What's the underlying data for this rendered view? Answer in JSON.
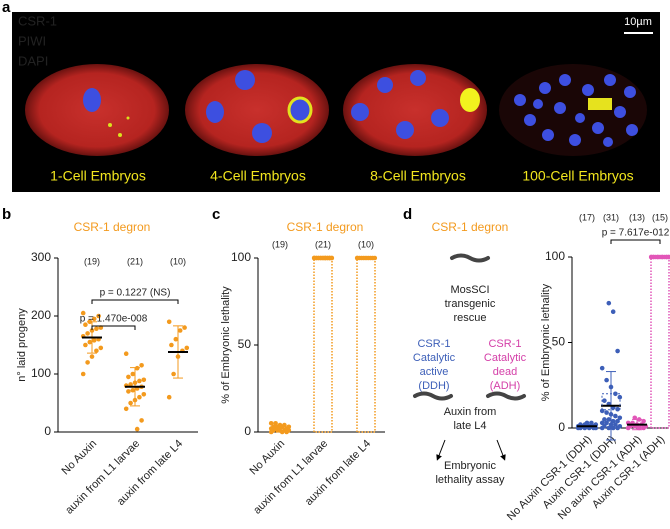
{
  "panel_letters": [
    "a",
    "b",
    "c",
    "d"
  ],
  "panel_a": {
    "channels": [
      {
        "name": "CSR-1",
        "color": "#e8262a"
      },
      {
        "name": "PIWI",
        "color": "#2fd12f"
      },
      {
        "name": "DAPI",
        "color": "#3d4fe0"
      }
    ],
    "scale_bar": "10µm",
    "captions": [
      "1-Cell Embryos",
      "4-Cell Embryos",
      "8-Cell Embryos",
      "100-Cell Embryos"
    ]
  },
  "diagram": {
    "title": "CSR-1 degron",
    "rescue": [
      "MosSCI",
      "transgenic",
      "rescue"
    ],
    "active": [
      "CSR-1",
      "Catalytic",
      "active",
      "(DDH)"
    ],
    "dead": [
      "CSR-1",
      "Catalytic",
      "dead",
      "(ADH)"
    ],
    "treatment": [
      "Auxin from",
      "late L4"
    ],
    "assay": [
      "Embryonic",
      "lethality assay"
    ]
  },
  "chart_data": [
    {
      "type": "strip",
      "title": "CSR-1 degron",
      "y_label": "n° laid progeny",
      "categories": [
        "No Auxin",
        "auxin from L1 larvae",
        "auxin from late L4"
      ],
      "n_labels": [
        "(19)",
        "(21)",
        "(10)"
      ],
      "colors": [
        "#f39a1e",
        "#f39a1e",
        "#f39a1e"
      ],
      "means": [
        163,
        78,
        138
      ],
      "sd": [
        27,
        33,
        45
      ],
      "points": [
        [
          205,
          200,
          195,
          190,
          185,
          180,
          178,
          175,
          170,
          165,
          160,
          158,
          155,
          150,
          145,
          140,
          130,
          120,
          100
        ],
        [
          135,
          115,
          110,
          100,
          95,
          90,
          88,
          85,
          82,
          80,
          78,
          75,
          72,
          70,
          65,
          60,
          55,
          50,
          40,
          20,
          5
        ],
        [
          190,
          180,
          175,
          160,
          150,
          145,
          140,
          130,
          100,
          60
        ]
      ],
      "bars": [
        false,
        false,
        false
      ],
      "annotations": [
        {
          "text": "p = 0.1227 (NS)",
          "between": [
            "No Auxin",
            "auxin from late L4"
          ]
        },
        {
          "text": "p = 1.470e-008",
          "between": [
            "No Auxin",
            "auxin from L1 larvae"
          ]
        }
      ],
      "ylim": [
        0,
        300
      ],
      "yticks": [
        0,
        100,
        200,
        300
      ]
    },
    {
      "type": "bar",
      "title": "CSR-1 degron",
      "y_label": "% of Embryonic lethality",
      "categories": [
        "No Auxin",
        "auxin from L1 larvae",
        "auxin from late L4"
      ],
      "n_labels": [
        "(19)",
        "(21)",
        "(10)"
      ],
      "colors": [
        "#f39a1e",
        "#f39a1e",
        "#f39a1e"
      ],
      "means": [
        2,
        100,
        100
      ],
      "sd": [
        1.5,
        0,
        0
      ],
      "points": [
        [
          0,
          0,
          0,
          1,
          1,
          1,
          1,
          2,
          2,
          2,
          2,
          3,
          3,
          3,
          3,
          4,
          4,
          5,
          5
        ],
        [
          100,
          100,
          100,
          100,
          100,
          100,
          100,
          100,
          100,
          100,
          100,
          100,
          100,
          100,
          100,
          100,
          100,
          100,
          100,
          100,
          100
        ],
        [
          100,
          100,
          100,
          100,
          100,
          100,
          100,
          100,
          100,
          100
        ]
      ],
      "bars": [
        true,
        true,
        true
      ],
      "annotations": [],
      "ylim": [
        0,
        100
      ],
      "yticks": [
        0,
        50,
        100
      ]
    },
    {
      "type": "strip",
      "y_label": "% of Embryonic lethality",
      "categories": [
        "No Auxin CSR-1 (DDH)",
        "Auxin CSR-1 (DDH)",
        "No auxin CSR-1 (ADH)",
        "Auxin CSR-1 (ADH)"
      ],
      "n_labels": [
        "(17)",
        "(31)",
        "(13)",
        "(15)"
      ],
      "colors": [
        "#3d5fb8",
        "#3d5fb8",
        "#e256b8",
        "#e256b8"
      ],
      "means": [
        1,
        13,
        2,
        100
      ],
      "sd": [
        1,
        20,
        3,
        0
      ],
      "points": [
        [
          0,
          0,
          0,
          0,
          0,
          0,
          1,
          1,
          1,
          1,
          1,
          1,
          2,
          2,
          2,
          3,
          3
        ],
        [
          0,
          0,
          0,
          0,
          1,
          1,
          2,
          2,
          3,
          3,
          4,
          4,
          5,
          5,
          6,
          7,
          8,
          9,
          10,
          11,
          12,
          14,
          16,
          18,
          20,
          24,
          28,
          35,
          45,
          68,
          73
        ],
        [
          0,
          0,
          0,
          1,
          1,
          1,
          2,
          2,
          3,
          3,
          4,
          5,
          6
        ],
        [
          100,
          100,
          100,
          100,
          100,
          100,
          100,
          100,
          100,
          100,
          100,
          100,
          100,
          100,
          100
        ]
      ],
      "bars": [
        false,
        false,
        false,
        true
      ],
      "annotations": [
        {
          "text": "p = 7.617e-012",
          "between": [
            "Auxin CSR-1 (DDH)",
            "Auxin CSR-1 (ADH)"
          ]
        }
      ],
      "ylim": [
        0,
        100
      ],
      "yticks": [
        0,
        50,
        100
      ]
    }
  ]
}
